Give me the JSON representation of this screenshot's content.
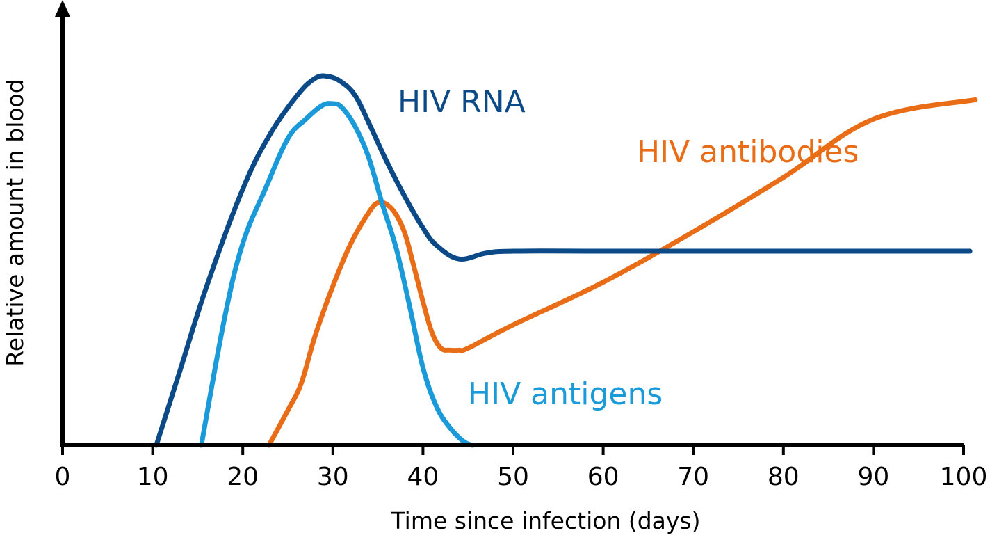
{
  "chart_data": {
    "type": "line",
    "xlabel": "Time since infection (days)",
    "ylabel": "Relative amount in blood",
    "xlim": [
      0,
      100
    ],
    "ylim": [
      0,
      100
    ],
    "x_ticks": [
      0,
      10,
      20,
      30,
      40,
      50,
      60,
      70,
      80,
      90,
      100
    ],
    "grid": false,
    "legend": "inline labels",
    "series": [
      {
        "name": "HIV RNA",
        "color": "#0c4a87",
        "x": [
          10.4,
          13,
          16,
          20,
          23,
          26,
          28,
          29.5,
          31,
          32.5,
          34,
          36,
          38,
          40,
          41.5,
          44,
          47,
          50,
          60,
          70,
          80,
          90,
          100.7
        ],
        "y": [
          0,
          19,
          41,
          66,
          80,
          90,
          94.5,
          95,
          93.5,
          90,
          83,
          73,
          64,
          56,
          51.5,
          48,
          49.5,
          50,
          50,
          50,
          50,
          50,
          50
        ]
      },
      {
        "name": "HIV antigens",
        "color": "#1a9ad9",
        "x": [
          15.4,
          18,
          20,
          22.5,
          25,
          27,
          28.8,
          30,
          31,
          32.5,
          34,
          35.5,
          37,
          38.5,
          40,
          41.5,
          43,
          44.5,
          45.5
        ],
        "y": [
          0,
          33,
          52,
          66,
          79,
          84,
          87.5,
          88,
          87,
          82,
          74,
          62,
          51,
          36,
          20,
          10,
          4.5,
          1,
          0
        ]
      },
      {
        "name": "HIV antibodies",
        "color": "#e96c17",
        "x": [
          22.9,
          25,
          26.5,
          28,
          30,
          32,
          34,
          35,
          36,
          37,
          38,
          39,
          40,
          41,
          42,
          43,
          44,
          45,
          50,
          60,
          70,
          80,
          90,
          101.3
        ],
        "y": [
          0,
          9,
          16,
          28,
          41,
          52,
          60,
          62.5,
          62,
          59.5,
          54.5,
          46,
          37,
          29,
          25,
          24.5,
          24.5,
          25,
          31,
          42,
          55,
          69,
          84,
          89
        ]
      }
    ]
  }
}
